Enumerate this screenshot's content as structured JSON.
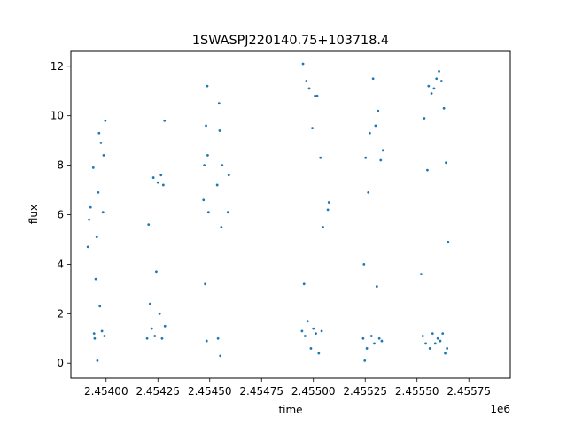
{
  "chart_data": {
    "type": "scatter",
    "title": "1SWASPJ220140.75+103718.4",
    "xlabel": "time",
    "ylabel": "flux",
    "x_offset_label": "1e6",
    "xlim": [
      2453830,
      2455950
    ],
    "ylim": [
      -0.6,
      12.6
    ],
    "x_ticks": [
      2454000,
      2454250,
      2454500,
      2454750,
      2455000,
      2455250,
      2455500,
      2455750
    ],
    "x_tick_labels": [
      "2.45400",
      "2.45425",
      "2.45450",
      "2.45475",
      "2.45500",
      "2.45525",
      "2.45550",
      "2.45575"
    ],
    "y_ticks": [
      0,
      2,
      4,
      6,
      8,
      10,
      12
    ],
    "y_tick_labels": [
      "0",
      "2",
      "4",
      "6",
      "8",
      "10",
      "12"
    ],
    "grid": false,
    "legend": "none",
    "marker_color": "#1f77b4",
    "series": [
      {
        "points": [
          [
            2453912,
            4.7
          ],
          [
            2453918,
            5.8
          ],
          [
            2453925,
            6.3
          ],
          [
            2453938,
            7.9
          ],
          [
            2453942,
            1.2
          ],
          [
            2453945,
            1.0
          ],
          [
            2453950,
            3.4
          ],
          [
            2453955,
            5.1
          ],
          [
            2453958,
            0.1
          ],
          [
            2453962,
            6.9
          ],
          [
            2453966,
            9.3
          ],
          [
            2453970,
            2.3
          ],
          [
            2453975,
            8.9
          ],
          [
            2453980,
            1.3
          ],
          [
            2453985,
            6.1
          ],
          [
            2453988,
            8.4
          ],
          [
            2453992,
            1.1
          ],
          [
            2453996,
            9.8
          ],
          [
            2454198,
            1.0
          ],
          [
            2454205,
            5.6
          ],
          [
            2454212,
            2.4
          ],
          [
            2454220,
            1.4
          ],
          [
            2454228,
            7.5
          ],
          [
            2454235,
            1.1
          ],
          [
            2454242,
            3.7
          ],
          [
            2454250,
            7.3
          ],
          [
            2454258,
            2.0
          ],
          [
            2454265,
            7.6
          ],
          [
            2454270,
            1.0
          ],
          [
            2454276,
            7.2
          ],
          [
            2454282,
            9.8
          ],
          [
            2454284,
            1.5
          ],
          [
            2454470,
            6.6
          ],
          [
            2454474,
            8.0
          ],
          [
            2454478,
            3.2
          ],
          [
            2454482,
            9.6
          ],
          [
            2454485,
            0.9
          ],
          [
            2454488,
            11.2
          ],
          [
            2454490,
            8.4
          ],
          [
            2454494,
            6.1
          ],
          [
            2454536,
            7.2
          ],
          [
            2454540,
            1.0
          ],
          [
            2454545,
            10.5
          ],
          [
            2454548,
            9.4
          ],
          [
            2454551,
            0.3
          ],
          [
            2454556,
            5.5
          ],
          [
            2454560,
            8.0
          ],
          [
            2454588,
            6.1
          ],
          [
            2454592,
            7.6
          ],
          [
            2454945,
            1.3
          ],
          [
            2454950,
            12.1
          ],
          [
            2454955,
            3.2
          ],
          [
            2454960,
            1.1
          ],
          [
            2454966,
            11.4
          ],
          [
            2454972,
            1.7
          ],
          [
            2454980,
            11.1
          ],
          [
            2454988,
            0.6
          ],
          [
            2454995,
            9.5
          ],
          [
            2455000,
            1.4
          ],
          [
            2455008,
            10.8
          ],
          [
            2455012,
            1.2
          ],
          [
            2455018,
            10.8
          ],
          [
            2455026,
            0.4
          ],
          [
            2455034,
            8.3
          ],
          [
            2455040,
            1.3
          ],
          [
            2455046,
            5.5
          ],
          [
            2455070,
            6.2
          ],
          [
            2455075,
            6.5
          ],
          [
            2455240,
            1.0
          ],
          [
            2455244,
            4.0
          ],
          [
            2455248,
            0.1
          ],
          [
            2455252,
            8.3
          ],
          [
            2455258,
            0.6
          ],
          [
            2455265,
            6.9
          ],
          [
            2455272,
            9.3
          ],
          [
            2455280,
            1.1
          ],
          [
            2455288,
            11.5
          ],
          [
            2455294,
            0.8
          ],
          [
            2455300,
            9.6
          ],
          [
            2455306,
            3.1
          ],
          [
            2455312,
            10.2
          ],
          [
            2455318,
            1.0
          ],
          [
            2455325,
            8.2
          ],
          [
            2455330,
            0.9
          ],
          [
            2455336,
            8.6
          ],
          [
            2455520,
            3.6
          ],
          [
            2455528,
            1.1
          ],
          [
            2455535,
            9.9
          ],
          [
            2455542,
            0.8
          ],
          [
            2455550,
            7.8
          ],
          [
            2455556,
            11.2
          ],
          [
            2455562,
            0.6
          ],
          [
            2455570,
            10.9
          ],
          [
            2455575,
            1.2
          ],
          [
            2455582,
            11.1
          ],
          [
            2455588,
            0.8
          ],
          [
            2455594,
            11.5
          ],
          [
            2455600,
            1.0
          ],
          [
            2455606,
            11.8
          ],
          [
            2455612,
            0.9
          ],
          [
            2455618,
            11.4
          ],
          [
            2455624,
            1.2
          ],
          [
            2455630,
            10.3
          ],
          [
            2455636,
            0.4
          ],
          [
            2455640,
            8.1
          ],
          [
            2455645,
            0.6
          ],
          [
            2455650,
            4.9
          ]
        ]
      }
    ]
  }
}
